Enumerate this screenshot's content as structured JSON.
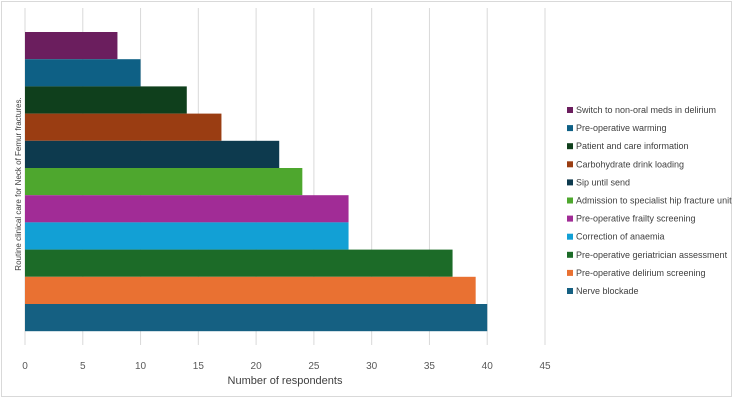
{
  "chart_data": {
    "type": "bar",
    "orientation": "horizontal",
    "title": "",
    "xlabel": "Number of respondents",
    "ylabel": "Routine clinical care for Neck of Femur fractures.",
    "xlim": [
      0,
      45
    ],
    "x_ticks": [
      0,
      5,
      10,
      15,
      20,
      25,
      30,
      35,
      40,
      45
    ],
    "grid": true,
    "legend_position": "right",
    "series": [
      {
        "name": "Switch to non-oral meds in delirium",
        "value": 8,
        "color": "#6b1e5e"
      },
      {
        "name": "Pre-operative warming",
        "value": 10,
        "color": "#0e6085"
      },
      {
        "name": "Patient and care information",
        "value": 14,
        "color": "#0f3f1c"
      },
      {
        "name": "Carbohydrate drink loading",
        "value": 17,
        "color": "#9a3d12"
      },
      {
        "name": "Sip until send",
        "value": 22,
        "color": "#0d3a4e"
      },
      {
        "name": "Admission to specialist hip fracture unit",
        "value": 24,
        "color": "#4ea72e"
      },
      {
        "name": "Pre-operative frailty screening",
        "value": 28,
        "color": "#a12c96"
      },
      {
        "name": "Correction of anaemia",
        "value": 28,
        "color": "#12a0d5"
      },
      {
        "name": "Pre-operative geriatrician assessment",
        "value": 37,
        "color": "#1c6b28"
      },
      {
        "name": "Pre-operative delirium screening",
        "value": 39,
        "color": "#e97132"
      },
      {
        "name": "Nerve blockade",
        "value": 40,
        "color": "#156082"
      }
    ]
  }
}
